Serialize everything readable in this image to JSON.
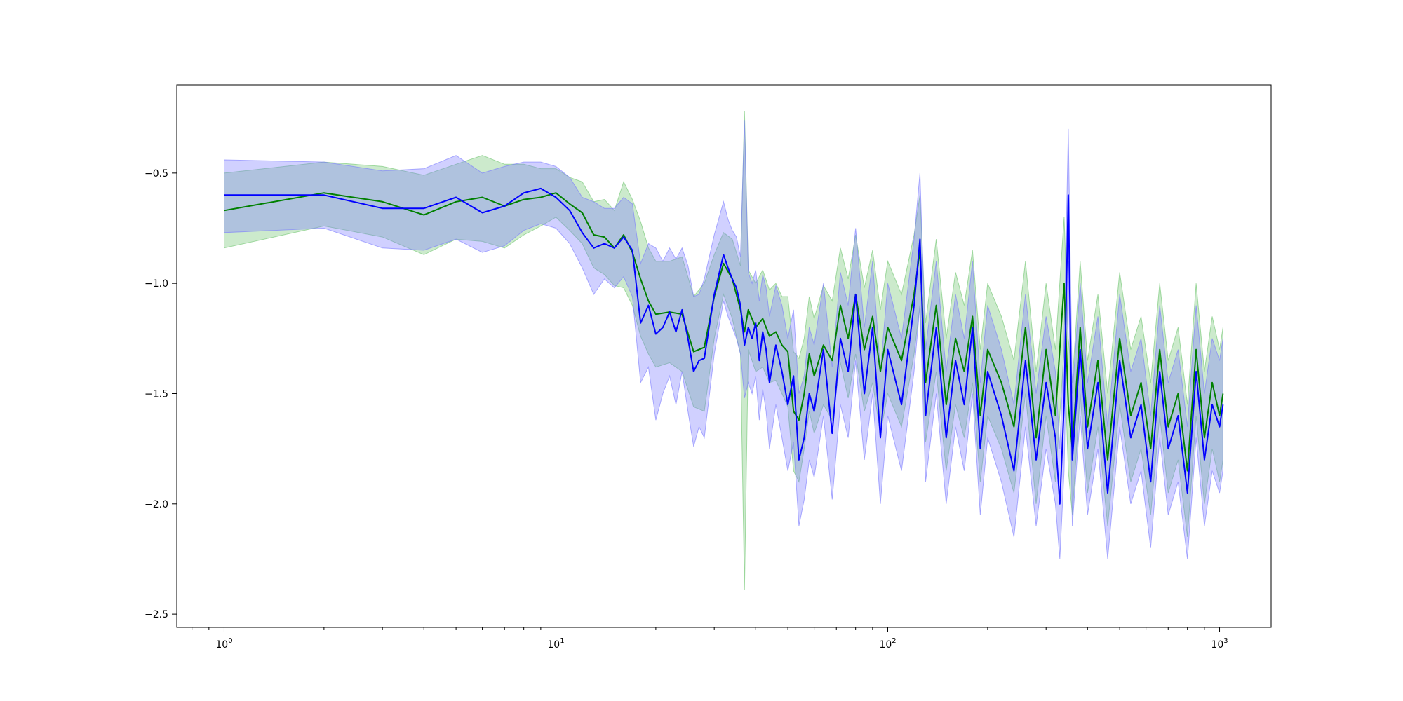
{
  "chart_data": {
    "type": "line",
    "title": "",
    "xlabel": "",
    "ylabel": "",
    "xscale": "log",
    "xlim": [
      0.72,
      1430
    ],
    "ylim": [
      -2.56,
      -0.1
    ],
    "grid": false,
    "legend": "none",
    "x_ticks": [
      {
        "base": "10",
        "exp": "0",
        "value": 1
      },
      {
        "base": "10",
        "exp": "1",
        "value": 10
      },
      {
        "base": "10",
        "exp": "2",
        "value": 100
      },
      {
        "base": "10",
        "exp": "3",
        "value": 1000
      }
    ],
    "y_ticks": [
      {
        "label": "−0.5",
        "value": -0.5
      },
      {
        "label": "−1.0",
        "value": -1.0
      },
      {
        "label": "−1.5",
        "value": -1.5
      },
      {
        "label": "−2.0",
        "value": -2.0
      },
      {
        "label": "−2.5",
        "value": -2.5
      }
    ],
    "colors": {
      "series_green": "#008000",
      "band_green": "#6ec46e",
      "series_blue": "#0000ff",
      "band_blue": "#7878ff"
    },
    "series": [
      {
        "color": "green",
        "band_opacity": 0.35,
        "x": [
          1,
          2,
          3,
          4,
          5,
          6,
          7,
          8,
          9,
          10,
          11,
          12,
          13,
          14,
          15,
          16,
          17,
          18,
          19,
          20,
          22,
          24,
          26,
          28,
          30,
          32,
          34,
          36,
          37,
          38,
          40,
          42,
          44,
          46,
          48,
          50,
          52,
          54,
          56,
          58,
          60,
          64,
          68,
          72,
          76,
          80,
          85,
          90,
          95,
          100,
          110,
          120,
          125,
          130,
          140,
          150,
          160,
          170,
          180,
          190,
          200,
          220,
          240,
          260,
          280,
          300,
          320,
          340,
          350,
          360,
          380,
          400,
          430,
          460,
          500,
          540,
          580,
          620,
          660,
          700,
          750,
          800,
          850,
          900,
          950,
          1000,
          1024
        ],
        "y": [
          -0.67,
          -0.59,
          -0.63,
          -0.69,
          -0.63,
          -0.61,
          -0.65,
          -0.62,
          -0.61,
          -0.59,
          -0.64,
          -0.68,
          -0.78,
          -0.79,
          -0.84,
          -0.78,
          -0.86,
          -0.98,
          -1.08,
          -1.14,
          -1.13,
          -1.14,
          -1.31,
          -1.29,
          -1.06,
          -0.91,
          -0.98,
          -1.12,
          -1.22,
          -1.12,
          -1.2,
          -1.16,
          -1.24,
          -1.22,
          -1.28,
          -1.31,
          -1.58,
          -1.62,
          -1.5,
          -1.32,
          -1.42,
          -1.28,
          -1.35,
          -1.1,
          -1.25,
          -1.05,
          -1.3,
          -1.15,
          -1.4,
          -1.2,
          -1.35,
          -1.05,
          -0.85,
          -1.45,
          -1.1,
          -1.55,
          -1.25,
          -1.4,
          -1.15,
          -1.6,
          -1.3,
          -1.45,
          -1.65,
          -1.2,
          -1.7,
          -1.3,
          -1.6,
          -1.0,
          -1.55,
          -1.75,
          -1.2,
          -1.65,
          -1.35,
          -1.8,
          -1.25,
          -1.6,
          -1.45,
          -1.75,
          -1.3,
          -1.65,
          -1.5,
          -1.85,
          -1.3,
          -1.7,
          -1.45,
          -1.6,
          -1.5
        ],
        "y_lower": [
          -0.84,
          -0.74,
          -0.79,
          -0.87,
          -0.8,
          -0.81,
          -0.84,
          -0.78,
          -0.74,
          -0.7,
          -0.76,
          -0.82,
          -0.93,
          -0.96,
          -1.01,
          -1.02,
          -1.1,
          -1.24,
          -1.32,
          -1.38,
          -1.36,
          -1.4,
          -1.56,
          -1.58,
          -1.25,
          -1.05,
          -1.16,
          -1.32,
          -2.39,
          -1.3,
          -1.4,
          -1.38,
          -1.45,
          -1.44,
          -1.5,
          -1.56,
          -1.85,
          -1.9,
          -1.75,
          -1.58,
          -1.68,
          -1.55,
          -1.62,
          -1.36,
          -1.52,
          -1.32,
          -1.58,
          -1.45,
          -1.68,
          -1.5,
          -1.65,
          -1.32,
          -1.1,
          -1.72,
          -1.4,
          -1.85,
          -1.55,
          -1.7,
          -1.45,
          -1.9,
          -1.6,
          -1.75,
          -1.95,
          -1.5,
          -2.0,
          -1.6,
          -1.9,
          -1.3,
          -1.85,
          -2.05,
          -1.5,
          -1.95,
          -1.65,
          -2.1,
          -1.55,
          -1.9,
          -1.75,
          -2.05,
          -1.6,
          -1.95,
          -1.8,
          -2.15,
          -1.6,
          -2.0,
          -1.75,
          -1.9,
          -1.8
        ],
        "y_upper": [
          -0.5,
          -0.45,
          -0.47,
          -0.51,
          -0.46,
          -0.42,
          -0.46,
          -0.46,
          -0.48,
          -0.48,
          -0.52,
          -0.54,
          -0.63,
          -0.62,
          -0.67,
          -0.54,
          -0.62,
          -0.72,
          -0.84,
          -0.9,
          -0.9,
          -0.88,
          -1.06,
          -1.0,
          -0.87,
          -0.77,
          -0.8,
          -0.92,
          -0.22,
          -0.94,
          -1.0,
          -0.94,
          -1.03,
          -1.0,
          -1.06,
          -1.06,
          -1.31,
          -1.34,
          -1.25,
          -1.06,
          -1.16,
          -1.01,
          -1.08,
          -0.84,
          -0.98,
          -0.78,
          -1.02,
          -0.85,
          -1.12,
          -0.9,
          -1.05,
          -0.78,
          -0.6,
          -1.18,
          -0.8,
          -1.25,
          -0.95,
          -1.1,
          -0.85,
          -1.3,
          -1.0,
          -1.15,
          -1.35,
          -0.9,
          -1.4,
          -1.0,
          -1.3,
          -0.7,
          -1.25,
          -1.45,
          -0.9,
          -1.35,
          -1.05,
          -1.5,
          -0.95,
          -1.3,
          -1.15,
          -1.45,
          -1.0,
          -1.35,
          -1.2,
          -1.55,
          -1.0,
          -1.4,
          -1.15,
          -1.3,
          -1.2
        ]
      },
      {
        "color": "blue",
        "band_opacity": 0.35,
        "x": [
          1,
          2,
          3,
          4,
          5,
          6,
          7,
          8,
          9,
          10,
          11,
          12,
          13,
          14,
          15,
          16,
          17,
          18,
          19,
          20,
          21,
          22,
          23,
          24,
          25,
          26,
          27,
          28,
          30,
          32,
          33,
          34,
          35,
          36,
          37,
          38,
          39,
          40,
          41,
          42,
          43,
          44,
          46,
          48,
          50,
          52,
          54,
          56,
          58,
          60,
          64,
          68,
          72,
          76,
          80,
          85,
          90,
          95,
          100,
          110,
          120,
          125,
          130,
          140,
          150,
          160,
          170,
          180,
          190,
          200,
          220,
          240,
          260,
          280,
          300,
          320,
          330,
          340,
          350,
          360,
          380,
          400,
          430,
          460,
          500,
          540,
          580,
          620,
          660,
          700,
          750,
          800,
          850,
          900,
          950,
          1000,
          1024
        ],
        "y": [
          -0.6,
          -0.6,
          -0.66,
          -0.66,
          -0.61,
          -0.68,
          -0.65,
          -0.59,
          -0.57,
          -0.61,
          -0.67,
          -0.77,
          -0.84,
          -0.82,
          -0.84,
          -0.79,
          -0.85,
          -1.18,
          -1.1,
          -1.23,
          -1.2,
          -1.13,
          -1.22,
          -1.12,
          -1.25,
          -1.4,
          -1.35,
          -1.34,
          -1.05,
          -0.87,
          -0.93,
          -0.98,
          -1.02,
          -1.1,
          -1.28,
          -1.2,
          -1.25,
          -1.18,
          -1.35,
          -1.22,
          -1.3,
          -1.45,
          -1.28,
          -1.4,
          -1.55,
          -1.42,
          -1.8,
          -1.7,
          -1.5,
          -1.58,
          -1.3,
          -1.68,
          -1.25,
          -1.4,
          -1.05,
          -1.5,
          -1.2,
          -1.7,
          -1.3,
          -1.55,
          -1.1,
          -0.8,
          -1.6,
          -1.2,
          -1.7,
          -1.35,
          -1.55,
          -1.2,
          -1.75,
          -1.4,
          -1.6,
          -1.85,
          -1.35,
          -1.8,
          -1.45,
          -1.7,
          -2.0,
          -1.55,
          -0.6,
          -1.8,
          -1.3,
          -1.75,
          -1.45,
          -1.95,
          -1.35,
          -1.7,
          -1.55,
          -1.9,
          -1.4,
          -1.75,
          -1.6,
          -1.95,
          -1.4,
          -1.8,
          -1.55,
          -1.65,
          -1.55
        ],
        "y_lower": [
          -0.77,
          -0.75,
          -0.84,
          -0.85,
          -0.8,
          -0.86,
          -0.83,
          -0.76,
          -0.73,
          -0.75,
          -0.82,
          -0.93,
          -1.05,
          -0.98,
          -1.02,
          -0.97,
          -1.06,
          -1.45,
          -1.38,
          -1.62,
          -1.5,
          -1.42,
          -1.55,
          -1.4,
          -1.58,
          -1.74,
          -1.65,
          -1.7,
          -1.32,
          -1.08,
          -1.15,
          -1.2,
          -1.25,
          -1.32,
          -1.52,
          -1.45,
          -1.5,
          -1.42,
          -1.62,
          -1.48,
          -1.58,
          -1.75,
          -1.55,
          -1.7,
          -1.85,
          -1.72,
          -2.1,
          -1.98,
          -1.8,
          -1.88,
          -1.6,
          -1.98,
          -1.55,
          -1.7,
          -1.35,
          -1.8,
          -1.5,
          -2.0,
          -1.6,
          -1.85,
          -1.4,
          -1.1,
          -1.9,
          -1.5,
          -2.0,
          -1.65,
          -1.85,
          -1.5,
          -2.05,
          -1.7,
          -1.9,
          -2.15,
          -1.65,
          -2.1,
          -1.75,
          -2.0,
          -2.25,
          -1.85,
          -0.9,
          -2.1,
          -1.6,
          -2.05,
          -1.75,
          -2.25,
          -1.65,
          -2.0,
          -1.85,
          -2.2,
          -1.7,
          -2.05,
          -1.9,
          -2.25,
          -1.7,
          -2.1,
          -1.85,
          -1.95,
          -1.85
        ],
        "y_upper": [
          -0.44,
          -0.45,
          -0.49,
          -0.48,
          -0.42,
          -0.5,
          -0.47,
          -0.45,
          -0.45,
          -0.47,
          -0.52,
          -0.61,
          -0.63,
          -0.66,
          -0.66,
          -0.61,
          -0.64,
          -0.91,
          -0.82,
          -0.84,
          -0.9,
          -0.84,
          -0.89,
          -0.84,
          -0.92,
          -1.06,
          -1.05,
          -0.98,
          -0.78,
          -0.63,
          -0.71,
          -0.76,
          -0.79,
          -0.88,
          -0.26,
          -0.95,
          -1.0,
          -0.94,
          -1.08,
          -0.96,
          -1.02,
          -1.15,
          -1.01,
          -1.1,
          -1.25,
          -1.12,
          -1.5,
          -1.42,
          -1.2,
          -1.28,
          -1.0,
          -1.38,
          -0.95,
          -1.1,
          -0.75,
          -1.2,
          -0.9,
          -1.4,
          -1.0,
          -1.25,
          -0.8,
          -0.5,
          -1.3,
          -0.9,
          -1.4,
          -1.05,
          -1.25,
          -0.9,
          -1.45,
          -1.1,
          -1.3,
          -1.55,
          -1.05,
          -1.5,
          -1.15,
          -1.4,
          -1.75,
          -1.25,
          -0.3,
          -1.5,
          -1.0,
          -1.45,
          -1.15,
          -1.65,
          -1.05,
          -1.4,
          -1.25,
          -1.6,
          -1.1,
          -1.45,
          -1.3,
          -1.65,
          -1.1,
          -1.5,
          -1.25,
          -1.35,
          -1.25
        ]
      }
    ]
  }
}
